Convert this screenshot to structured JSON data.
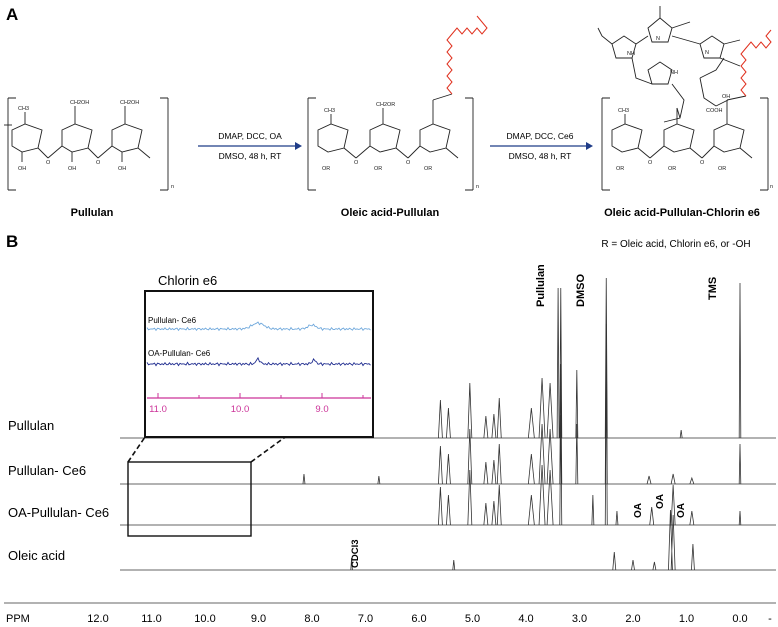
{
  "panel_a": {
    "label": "A",
    "arrow1": {
      "line1": "DMAP, DCC, OA",
      "line2": "DMSO, 48 h, RT"
    },
    "arrow2": {
      "line1": "DMAP, DCC, Ce6",
      "line2": "DMSO, 48 h, RT"
    },
    "compound1": "Pullulan",
    "compound2": "Oleic acid-Pullulan",
    "compound3": "Oleic acid-Pullulan-Chlorin e6",
    "r_note": "R = Oleic acid, Chlorin e6, or -OH",
    "ring_labels": {
      "ch3": "CH3",
      "ch2oh": "CH2OH",
      "ch2or": "CH2OR",
      "oh": "OH",
      "or": "OR",
      "o": "O",
      "h": "H",
      "n": "n",
      "nh": "NH",
      "n_atom": "N",
      "cooh": "COOH",
      "oh_acid": "OH"
    }
  },
  "panel_b": {
    "label": "B",
    "peak_labels": {
      "pullulan": "Pullulan",
      "dmso": "DMSO",
      "tms": "TMS",
      "cdcl3": "CDCl3",
      "oa": "OA"
    },
    "spectra": [
      {
        "name": "Pullulan"
      },
      {
        "name": "Pullulan- Ce6"
      },
      {
        "name": "OA-Pullulan- Ce6"
      },
      {
        "name": "Oleic acid"
      }
    ],
    "inset": {
      "title": "Chlorin e6",
      "trace1": "Pullulan- Ce6",
      "trace2": "OA-Pullulan- Ce6",
      "ticks": [
        "11.0",
        "10.0",
        "9.0"
      ],
      "colors": {
        "light": "#6fa8dc",
        "dark": "#1f2c8f",
        "axis": "#cc3399"
      }
    },
    "axis": {
      "label": "PPM",
      "ticks": [
        "12.0",
        "11.0",
        "10.0",
        "9.0",
        "8.0",
        "7.0",
        "6.0",
        "5.0",
        "4.0",
        "3.0",
        "2.0",
        "1.0",
        "0.0",
        "-"
      ]
    }
  }
}
